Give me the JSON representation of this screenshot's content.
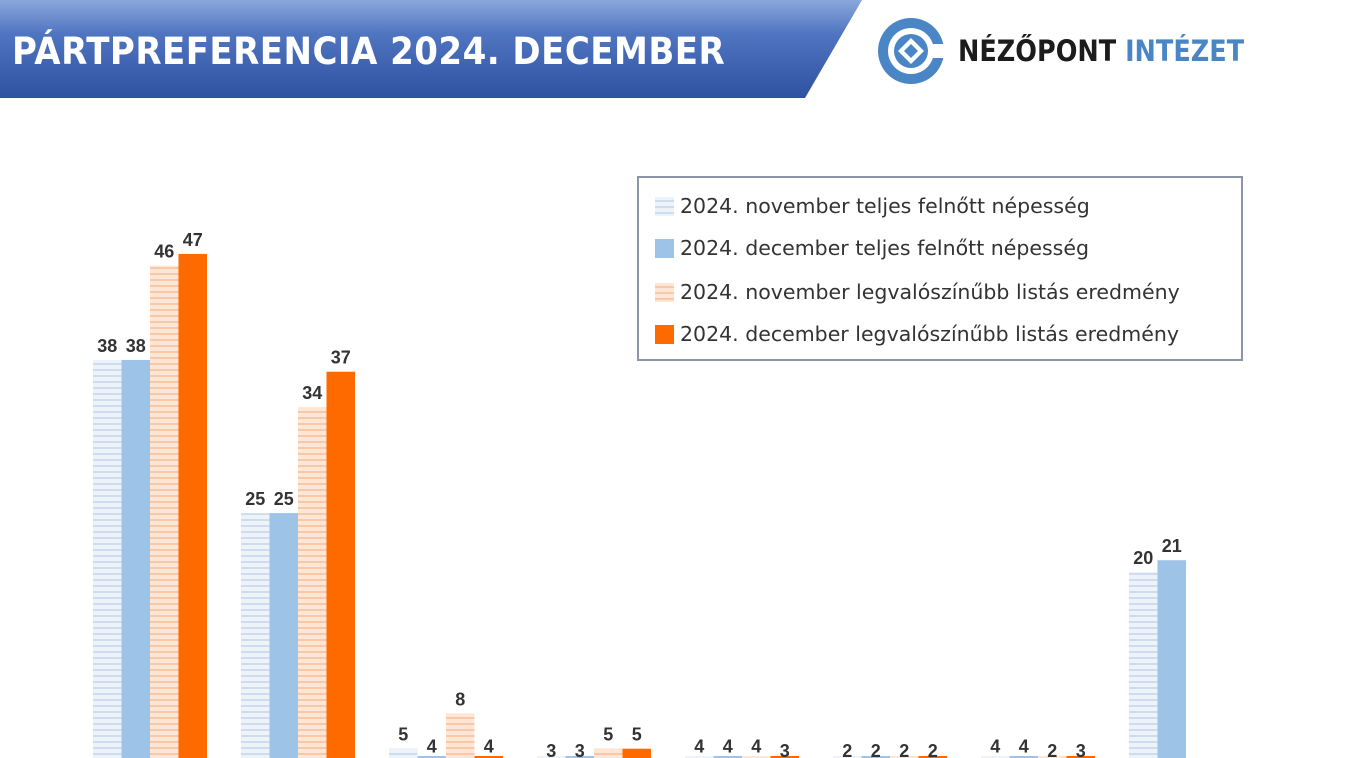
{
  "header": {
    "title": "PÁRTPREFERENCIA 2024. DECEMBER",
    "brand_part1": "NÉZŐPONT",
    "brand_part2": "INTÉZET"
  },
  "colors": {
    "banner": "#3f64b2",
    "nov_total": "#dce7f3",
    "dec_total": "#9dc3e6",
    "nov_list": "#fbd5bd",
    "dec_list": "#ff6a00",
    "brand_blue": "#4a86c5"
  },
  "chart_data": {
    "type": "bar",
    "title": "PÁRTPREFERENCIA 2024. DECEMBER",
    "legend_position": "top-right",
    "grid": false,
    "categories": [
      "",
      "",
      "",
      "",
      "",
      "",
      "",
      ""
    ],
    "series": [
      {
        "name": "2024. november teljes felnőtt népesség",
        "values": [
          38,
          25,
          5,
          3,
          4,
          2,
          4,
          20
        ]
      },
      {
        "name": "2024. december teljes felnőtt népesség",
        "values": [
          38,
          25,
          4,
          3,
          4,
          2,
          4,
          21
        ]
      },
      {
        "name": "2024. november legvalószínűbb listás eredmény",
        "values": [
          46,
          34,
          8,
          5,
          4,
          2,
          2,
          null
        ]
      },
      {
        "name": "2024. december legvalószínűbb listás eredmény",
        "values": [
          47,
          37,
          4,
          5,
          3,
          2,
          3,
          null
        ]
      }
    ]
  }
}
